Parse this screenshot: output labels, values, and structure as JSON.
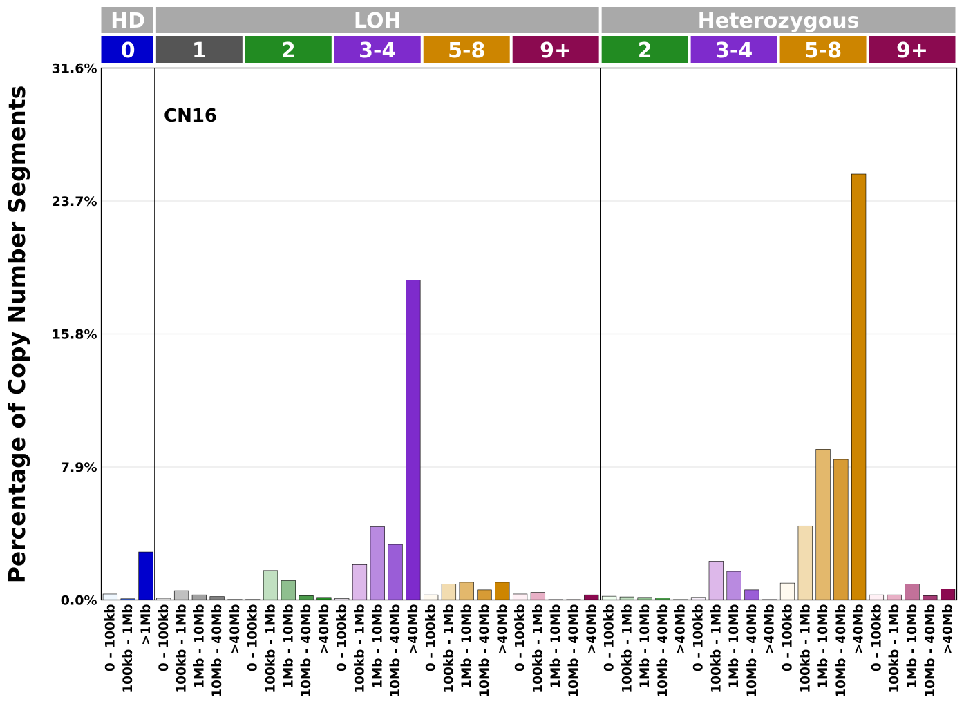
{
  "chart_data": {
    "type": "bar",
    "ylabel": "Percentage of Copy Number Segments",
    "annotation": "CN16",
    "ylim": [
      0,
      31.6
    ],
    "y_ticks": [
      "0.0%",
      "7.9%",
      "15.8%",
      "23.7%",
      "31.6%"
    ],
    "y_tick_values": [
      0,
      7.9,
      15.8,
      23.7,
      31.6
    ],
    "grid": "horizontal",
    "top_groups": [
      {
        "label": "HD",
        "color": "#a9a9a9"
      },
      {
        "label": "LOH",
        "color": "#a9a9a9"
      },
      {
        "label": "Heterozygous",
        "color": "#a9a9a9"
      }
    ],
    "copy_number_groups": [
      {
        "label": "0",
        "top_group": "HD",
        "color": "#0000cd"
      },
      {
        "label": "1",
        "top_group": "LOH",
        "color": "#555555"
      },
      {
        "label": "2",
        "top_group": "LOH",
        "color": "#228b22"
      },
      {
        "label": "3-4",
        "top_group": "LOH",
        "color": "#7e2bcc"
      },
      {
        "label": "5-8",
        "top_group": "LOH",
        "color": "#cd8500"
      },
      {
        "label": "9+",
        "top_group": "LOH",
        "color": "#8b0a50"
      },
      {
        "label": "2",
        "top_group": "Heterozygous",
        "color": "#228b22"
      },
      {
        "label": "3-4",
        "top_group": "Heterozygous",
        "color": "#7e2bcc"
      },
      {
        "label": "5-8",
        "top_group": "Heterozygous",
        "color": "#cd8500"
      },
      {
        "label": "9+",
        "top_group": "Heterozygous",
        "color": "#8b0a50"
      }
    ],
    "categories": [
      "0 - 100kb",
      "100kb - 1Mb",
      ">1Mb",
      "0 - 100kb",
      "100kb - 1Mb",
      "1Mb - 10Mb",
      "10Mb - 40Mb",
      ">40Mb",
      "0 - 100kb",
      "100kb - 1Mb",
      "1Mb - 10Mb",
      "10Mb - 40Mb",
      ">40Mb",
      "0 - 100kb",
      "100kb - 1Mb",
      "1Mb - 10Mb",
      "10Mb - 40Mb",
      ">40Mb",
      "0 - 100kb",
      "100kb - 1Mb",
      "1Mb - 10Mb",
      "10Mb - 40Mb",
      ">40Mb",
      "0 - 100kb",
      "100kb - 1Mb",
      "1Mb - 10Mb",
      "10Mb - 40Mb",
      ">40Mb",
      "0 - 100kb",
      "100kb - 1Mb",
      "1Mb - 10Mb",
      "10Mb - 40Mb",
      ">40Mb",
      "0 - 100kb",
      "100kb - 1Mb",
      "1Mb - 10Mb",
      "10Mb - 40Mb",
      ">40Mb",
      "0 - 100kb",
      "100kb - 1Mb",
      "1Mb - 10Mb",
      "10Mb - 40Mb",
      ">40Mb",
      "0 - 100kb",
      "100kb - 1Mb",
      "1Mb - 10Mb",
      "10Mb - 40Mb",
      ">40Mb"
    ],
    "values": [
      0.35,
      0.07,
      2.85,
      0.1,
      0.55,
      0.3,
      0.2,
      0.03,
      0.03,
      1.75,
      1.15,
      0.25,
      0.15,
      0.08,
      2.1,
      4.35,
      3.3,
      19.0,
      0.3,
      0.95,
      1.05,
      0.6,
      1.05,
      0.35,
      0.45,
      0.0,
      0.0,
      0.3,
      0.22,
      0.18,
      0.15,
      0.12,
      0.0,
      0.15,
      2.3,
      1.7,
      0.6,
      0.02,
      1.0,
      4.4,
      8.95,
      8.35,
      25.3,
      0.3,
      0.3,
      0.95,
      0.25,
      0.65
    ],
    "bar_colors": [
      "#f0f8ff",
      "#4169e1",
      "#0000cd",
      "#f5f5f5",
      "#c0c0c0",
      "#a0a0a0",
      "#808080",
      "#555555",
      "#f0fff0",
      "#c1e0c1",
      "#8fbf8f",
      "#4a9a4a",
      "#228b22",
      "#f8f0fb",
      "#ddb8ea",
      "#b98ae0",
      "#9a5dd7",
      "#7e2bcc",
      "#fffaf0",
      "#f2dcb0",
      "#e3b86c",
      "#d79b35",
      "#cd8500",
      "#fff0f5",
      "#e8b0c6",
      "#c27199",
      "#a53a74",
      "#8b0a50",
      "#f0fff0",
      "#c1e0c1",
      "#8fbf8f",
      "#4a9a4a",
      "#228b22",
      "#f8f0fb",
      "#ddb8ea",
      "#b98ae0",
      "#9a5dd7",
      "#7e2bcc",
      "#fffaf0",
      "#f2dcb0",
      "#e3b86c",
      "#d79b35",
      "#cd8500",
      "#fff0f5",
      "#e8b0c6",
      "#c27199",
      "#a53a74",
      "#8b0a50"
    ]
  }
}
